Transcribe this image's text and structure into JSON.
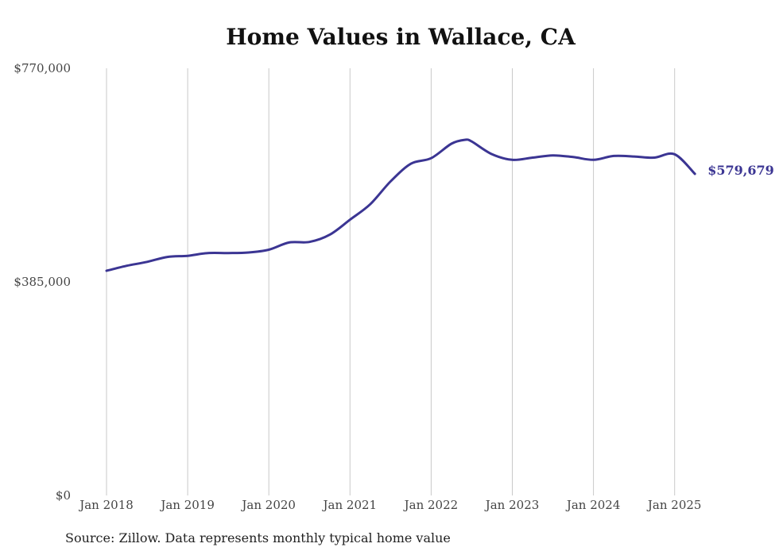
{
  "chart_data": {
    "type": "line",
    "title": "Home Values in Wallace, CA",
    "xlabel": "",
    "ylabel": "",
    "x_tick_labels": [
      "Jan 2018",
      "Jan 2019",
      "Jan 2020",
      "Jan 2021",
      "Jan 2022",
      "Jan 2023",
      "Jan 2024",
      "Jan 2025"
    ],
    "y_tick_labels": [
      "$770,000",
      "$385,000",
      "$0"
    ],
    "y_ticks": [
      770000,
      385000,
      0
    ],
    "ylim": [
      0,
      770000
    ],
    "xlim": [
      "2018-01",
      "2025-04"
    ],
    "grid": {
      "vertical": true,
      "horizontal": false
    },
    "line_color": "#3b3593",
    "end_label": "$579,679",
    "series": [
      {
        "x": [
          "2018-01",
          "2018-04",
          "2018-07",
          "2018-10",
          "2019-01",
          "2019-04",
          "2019-07",
          "2019-10",
          "2020-01",
          "2020-04",
          "2020-07",
          "2020-10",
          "2021-01",
          "2021-04",
          "2021-07",
          "2021-10",
          "2022-01",
          "2022-04",
          "2022-06",
          "2022-07",
          "2022-10",
          "2023-01",
          "2023-04",
          "2023-07",
          "2023-10",
          "2024-01",
          "2024-04",
          "2024-07",
          "2024-10",
          "2025-01",
          "2025-04"
        ],
        "values": [
          405000,
          414000,
          421000,
          430000,
          432000,
          437000,
          437000,
          438000,
          443000,
          456000,
          457000,
          470000,
          497000,
          525000,
          566000,
          598000,
          608000,
          634000,
          641000,
          638000,
          615000,
          605000,
          609000,
          613000,
          610000,
          605000,
          612000,
          611000,
          609000,
          615000,
          579679
        ]
      }
    ]
  },
  "source_note": "Source: Zillow. Data represents monthly typical home value"
}
